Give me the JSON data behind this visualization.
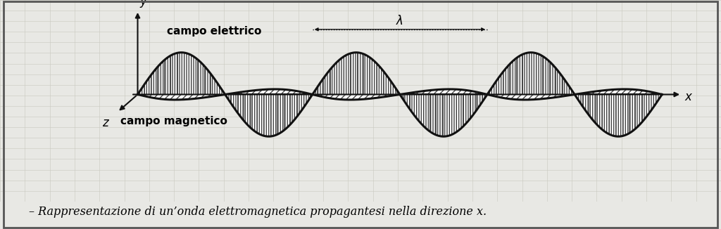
{
  "caption": "– Rappresentazione di un’onda elettromagnetica propagantesi nella direzione x.",
  "label_electric": "campo elettrico",
  "label_magnetic": "campo magnetico",
  "label_x": "x",
  "label_y": "y",
  "label_z": "z",
  "label_lambda": "λ",
  "bg_color": "#e8e8e4",
  "wave_color": "#111111",
  "n_points": 2000,
  "periods": 3,
  "amplitude_E": 1.0,
  "amplitude_B": 0.42,
  "shear_x": -0.22,
  "shear_y": -0.3,
  "ox": 1.6,
  "oy": 0.55,
  "x_plot_start": 1.6,
  "x_plot_end": 9.6,
  "xlim": [
    -0.5,
    10.5
  ],
  "ylim": [
    -2.0,
    2.8
  ]
}
